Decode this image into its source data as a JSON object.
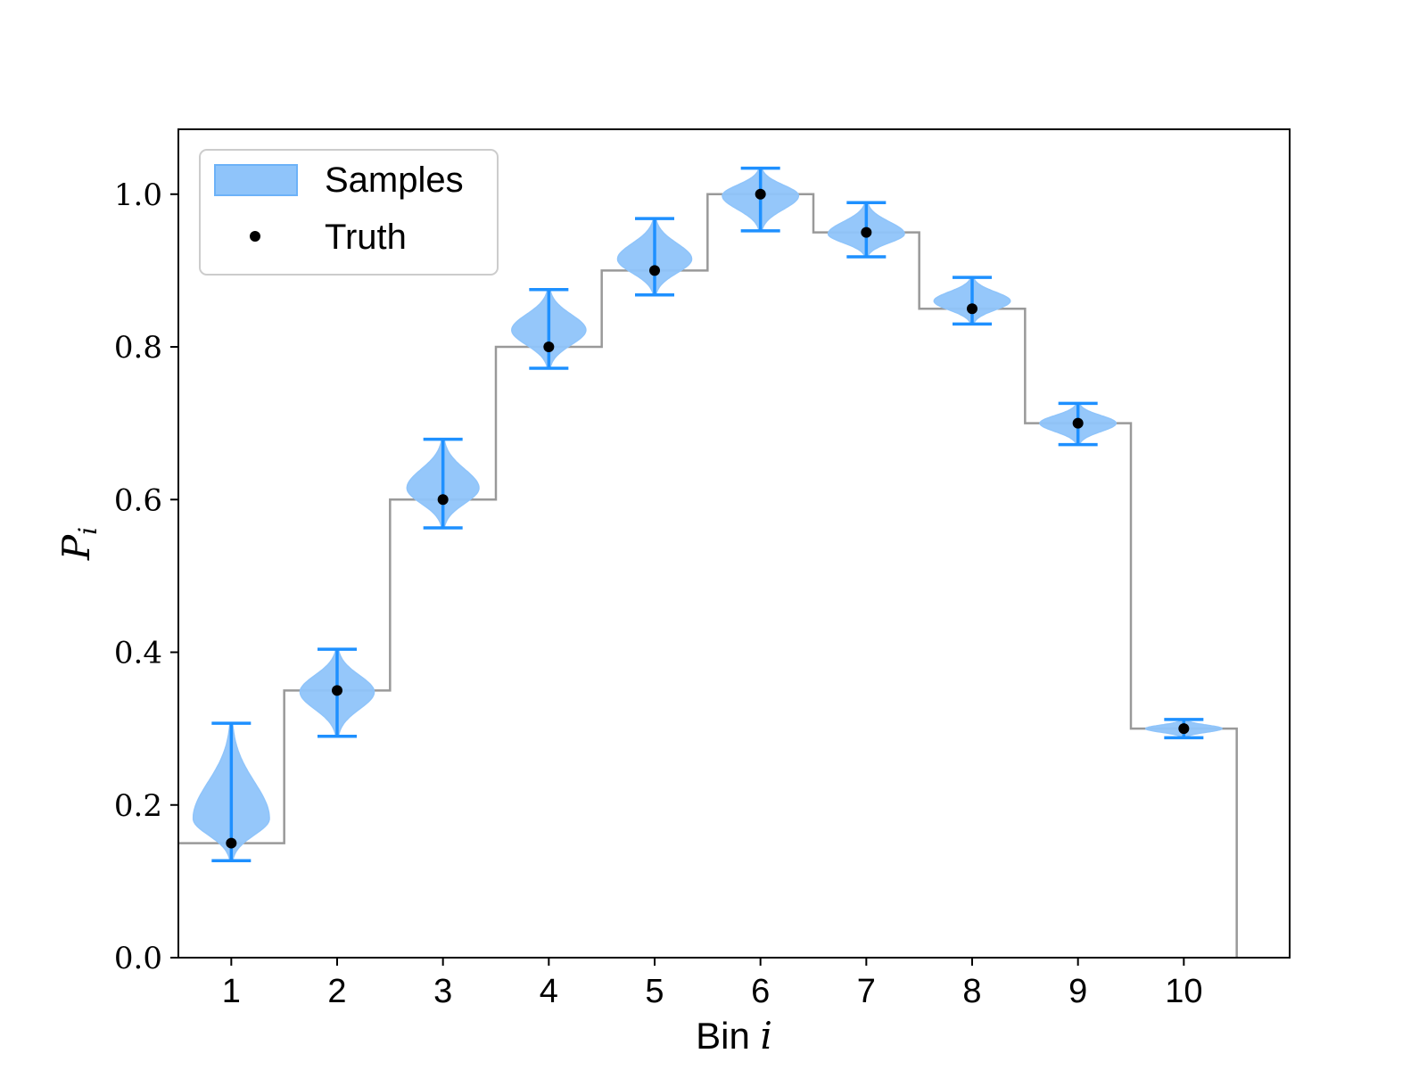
{
  "chart_data": {
    "type": "violin",
    "xlabel": {
      "text": "Bin ",
      "var": "i"
    },
    "ylabel": {
      "var": "P",
      "sub": "i"
    },
    "x": [
      1,
      2,
      3,
      4,
      5,
      6,
      7,
      8,
      9,
      10
    ],
    "xticks": [
      "1",
      "2",
      "3",
      "4",
      "5",
      "6",
      "7",
      "8",
      "9",
      "10"
    ],
    "yticks": [
      "0.0",
      "0.2",
      "0.4",
      "0.6",
      "0.8",
      "1.0"
    ],
    "ytick_values": [
      0.0,
      0.2,
      0.4,
      0.6,
      0.8,
      1.0
    ],
    "xlim": [
      0.5,
      11.0
    ],
    "ylim": [
      0.0,
      1.085
    ],
    "legend": {
      "position": "upper left",
      "entries": [
        "Samples",
        "Truth"
      ]
    },
    "series": [
      {
        "name": "Samples",
        "kind": "violin",
        "color": "#1E90FF",
        "fill": "#8FC4FA",
        "min": [
          0.127,
          0.29,
          0.563,
          0.772,
          0.868,
          0.952,
          0.918,
          0.83,
          0.672,
          0.288
        ],
        "max": [
          0.307,
          0.404,
          0.679,
          0.875,
          0.968,
          1.034,
          0.989,
          0.891,
          0.726,
          0.312
        ],
        "mode": [
          0.182,
          0.348,
          0.615,
          0.822,
          0.915,
          0.998,
          0.948,
          0.86,
          0.7,
          0.3
        ],
        "max_half_width": [
          0.36,
          0.35,
          0.34,
          0.35,
          0.35,
          0.36,
          0.36,
          0.36,
          0.36,
          0.36
        ]
      },
      {
        "name": "Truth",
        "kind": "scatter",
        "color": "#000000",
        "values": [
          0.15,
          0.35,
          0.6,
          0.8,
          0.9,
          1.0,
          0.95,
          0.85,
          0.7,
          0.3
        ]
      },
      {
        "name": "truth-steps",
        "kind": "step",
        "color": "#999999",
        "values": [
          0.15,
          0.35,
          0.6,
          0.8,
          0.9,
          1.0,
          0.95,
          0.85,
          0.7,
          0.3
        ],
        "end_value": 0.0
      }
    ]
  }
}
